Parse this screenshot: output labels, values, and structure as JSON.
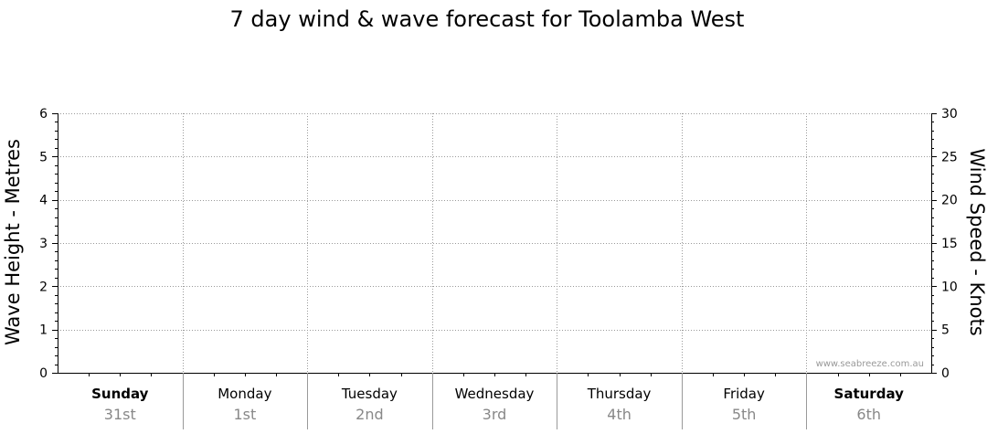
{
  "chart_data": {
    "type": "line",
    "title": "7 day wind & wave forecast for Toolamba West",
    "ylabel_left": "Wave Height - Metres",
    "ylabel_right": "Wind Speed - Knots",
    "ylim_left": [
      0,
      6
    ],
    "ylim_right": [
      0,
      30
    ],
    "yticks_left": [
      "0",
      "1",
      "2",
      "3",
      "4",
      "5",
      "6"
    ],
    "yticks_right": [
      "0",
      "5",
      "10",
      "15",
      "20",
      "25",
      "30"
    ],
    "days": [
      {
        "day": "Sunday",
        "date": "31st",
        "bold": true
      },
      {
        "day": "Monday",
        "date": "1st",
        "bold": false
      },
      {
        "day": "Tuesday",
        "date": "2nd",
        "bold": false
      },
      {
        "day": "Wednesday",
        "date": "3rd",
        "bold": false
      },
      {
        "day": "Thursday",
        "date": "4th",
        "bold": false
      },
      {
        "day": "Friday",
        "date": "5th",
        "bold": false
      },
      {
        "day": "Saturday",
        "date": "6th",
        "bold": true
      }
    ],
    "grid": true,
    "series": [],
    "watermark": "www.seabreeze.com.au"
  }
}
